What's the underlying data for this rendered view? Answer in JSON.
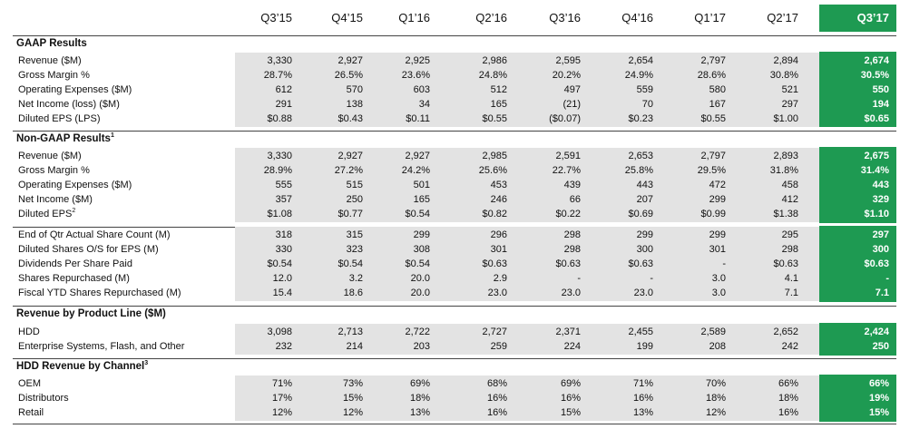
{
  "header": {
    "columns": [
      "Q3’15",
      "Q4’15",
      "Q1’16",
      "Q2’16",
      "Q3’16",
      "Q4’16",
      "Q1’17",
      "Q2’17",
      "Q3’17"
    ]
  },
  "sections": [
    {
      "title": "GAAP Results",
      "title_sup": "",
      "rows": [
        {
          "label": "Revenue ($M)",
          "label_sup": "",
          "values": [
            "3,330",
            "2,927",
            "2,925",
            "2,986",
            "2,595",
            "2,654",
            "2,797",
            "2,894",
            "2,674"
          ]
        },
        {
          "label": "Gross Margin %",
          "label_sup": "",
          "values": [
            "28.7%",
            "26.5%",
            "23.6%",
            "24.8%",
            "20.2%",
            "24.9%",
            "28.6%",
            "30.8%",
            "30.5%"
          ]
        },
        {
          "label": "Operating Expenses ($M)",
          "label_sup": "",
          "values": [
            "612",
            "570",
            "603",
            "512",
            "497",
            "559",
            "580",
            "521",
            "550"
          ]
        },
        {
          "label": "Net Income (loss) ($M)",
          "label_sup": "",
          "values": [
            "291",
            "138",
            "34",
            "165",
            "(21)",
            "70",
            "167",
            "297",
            "194"
          ]
        },
        {
          "label": "Diluted EPS (LPS)",
          "label_sup": "",
          "values": [
            "$0.88",
            "$0.43",
            "$0.11",
            "$0.55",
            "($0.07)",
            "$0.23",
            "$0.55",
            "$1.00",
            "$0.65"
          ]
        }
      ]
    },
    {
      "title": "Non-GAAP Results",
      "title_sup": "1",
      "rows": [
        {
          "label": "Revenue ($M)",
          "label_sup": "",
          "values": [
            "3,330",
            "2,927",
            "2,927",
            "2,985",
            "2,591",
            "2,653",
            "2,797",
            "2,893",
            "2,675"
          ]
        },
        {
          "label": "Gross Margin %",
          "label_sup": "",
          "values": [
            "28.9%",
            "27.2%",
            "24.2%",
            "25.6%",
            "22.7%",
            "25.8%",
            "29.5%",
            "31.8%",
            "31.4%"
          ]
        },
        {
          "label": "Operating Expenses ($M)",
          "label_sup": "",
          "values": [
            "555",
            "515",
            "501",
            "453",
            "439",
            "443",
            "472",
            "458",
            "443"
          ]
        },
        {
          "label": "Net Income ($M)",
          "label_sup": "",
          "values": [
            "357",
            "250",
            "165",
            "246",
            "66",
            "207",
            "299",
            "412",
            "329"
          ]
        },
        {
          "label": "Diluted EPS",
          "label_sup": "2",
          "values": [
            "$1.08",
            "$0.77",
            "$0.54",
            "$0.82",
            "$0.22",
            "$0.69",
            "$0.99",
            "$1.38",
            "$1.10"
          ]
        }
      ]
    },
    {
      "title": "",
      "title_sup": "",
      "rows": [
        {
          "label": "End of Qtr Actual Share Count (M)",
          "label_sup": "",
          "values": [
            "318",
            "315",
            "299",
            "296",
            "298",
            "299",
            "299",
            "295",
            "297"
          ]
        },
        {
          "label": "Diluted Shares O/S for EPS (M)",
          "label_sup": "",
          "values": [
            "330",
            "323",
            "308",
            "301",
            "298",
            "300",
            "301",
            "298",
            "300"
          ]
        },
        {
          "label": "Dividends Per Share Paid",
          "label_sup": "",
          "values": [
            "$0.54",
            "$0.54",
            "$0.54",
            "$0.63",
            "$0.63",
            "$0.63",
            "-",
            "$0.63",
            "$0.63"
          ]
        },
        {
          "label": "Shares Repurchased (M)",
          "label_sup": "",
          "values": [
            "12.0",
            "3.2",
            "20.0",
            "2.9",
            "-",
            "-",
            "3.0",
            "4.1",
            "-"
          ]
        },
        {
          "label": "Fiscal YTD Shares Repurchased (M)",
          "label_sup": "",
          "values": [
            "15.4",
            "18.6",
            "20.0",
            "23.0",
            "23.0",
            "23.0",
            "3.0",
            "7.1",
            "7.1"
          ]
        }
      ]
    },
    {
      "title": "Revenue by Product Line ($M)",
      "title_sup": "",
      "rows": [
        {
          "label": "HDD",
          "label_sup": "",
          "values": [
            "3,098",
            "2,713",
            "2,722",
            "2,727",
            "2,371",
            "2,455",
            "2,589",
            "2,652",
            "2,424"
          ]
        },
        {
          "label": "Enterprise Systems, Flash, and Other",
          "label_sup": "",
          "values": [
            "232",
            "214",
            "203",
            "259",
            "224",
            "199",
            "208",
            "242",
            "250"
          ]
        }
      ]
    },
    {
      "title": "HDD Revenue by Channel",
      "title_sup": "3",
      "rows": [
        {
          "label": "OEM",
          "label_sup": "",
          "values": [
            "71%",
            "73%",
            "69%",
            "68%",
            "69%",
            "71%",
            "70%",
            "66%",
            "66%"
          ]
        },
        {
          "label": "Distributors",
          "label_sup": "",
          "values": [
            "17%",
            "15%",
            "18%",
            "16%",
            "16%",
            "16%",
            "18%",
            "18%",
            "19%"
          ]
        },
        {
          "label": "Retail",
          "label_sup": "",
          "values": [
            "12%",
            "12%",
            "13%",
            "16%",
            "15%",
            "13%",
            "12%",
            "16%",
            "15%"
          ]
        }
      ]
    }
  ]
}
